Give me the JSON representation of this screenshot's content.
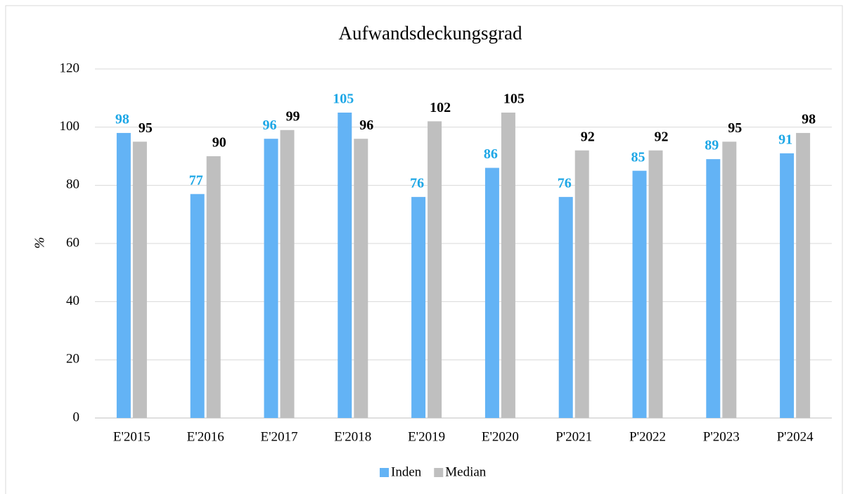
{
  "chart_data": {
    "type": "bar",
    "title": "Aufwandsdeckungsgrad",
    "y_label": "%",
    "categories": [
      "E'2015",
      "E'2016",
      "E'2017",
      "E'2018",
      "E'2019",
      "E'2020",
      "P'2021",
      "P'2022",
      "P'2023",
      "P'2024"
    ],
    "series": [
      {
        "name": "Inden",
        "color": "#63b3f5",
        "label_color": "#1ea7e6",
        "values": [
          98,
          77,
          96,
          105,
          76,
          86,
          76,
          85,
          89,
          91
        ]
      },
      {
        "name": "Median",
        "color": "#bfbfbf",
        "label_color": "#000000",
        "values": [
          95,
          90,
          99,
          96,
          102,
          105,
          92,
          92,
          95,
          98
        ]
      }
    ],
    "ylim": [
      0,
      120
    ],
    "yticks": [
      0,
      20,
      40,
      60,
      80,
      100,
      120
    ],
    "grid": true,
    "legend": "bottom"
  }
}
